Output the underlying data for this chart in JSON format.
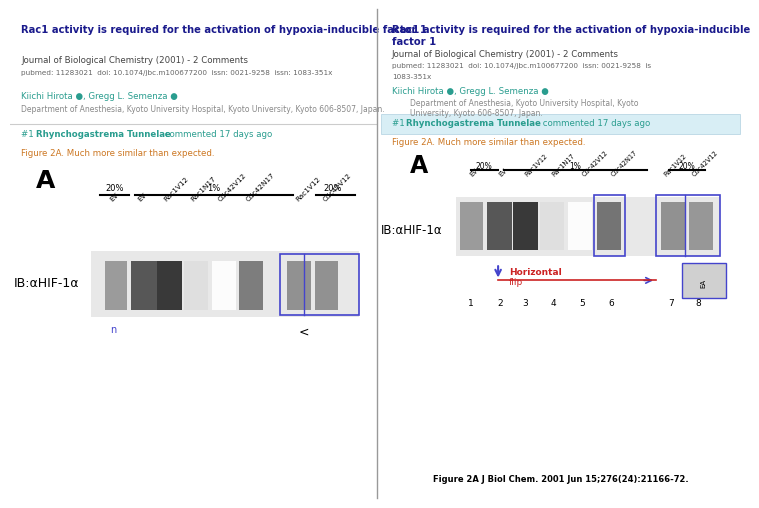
{
  "left_panel": {
    "bg_color": "#f0f4f8",
    "title": "Rac1 activity is required for the activation of hypoxia-inducible factor 1",
    "journal": "Journal of Biological Chemistry (2001) - 2 Comments",
    "pubmed": "pubmed: 11283021  doi: 10.1074/jbc.m100677200  issn: 0021-9258  issn: 1083-351x",
    "authors": "Kiichi Hirota ●, Gregg L. Semenza ●",
    "affiliation": "Department of Anesthesia, Kyoto University Hospital, Kyoto University, Kyoto 606-8507, Japan.",
    "comment": "#1 Rhynchogastrema Tunnelae commented 17 days ago",
    "figure_caption": "Figure 2A. Much more similar than expected.",
    "panel_label": "A",
    "percent_labels": [
      "20%",
      "1%",
      "20%"
    ],
    "lane_labels": [
      "EV",
      "EV",
      "Rac1V12",
      "Rac1N17",
      "Cdc42V12",
      "Cdc42N17",
      "Rac1V12",
      "Cdc42V12"
    ],
    "ib_label": "IB:αHIF-1α"
  },
  "right_panel": {
    "bg_color": "#e8f4f8",
    "title": "Rac1 activity is required for the activation of hypoxia-inducible\nfactor 1",
    "journal": "Journal of Biological Chemistry (2001) - 2 Comments",
    "pubmed": "pubmed: 11283021  doi: 10.1074/jbc.m100677200  issn: 0021-9258  is\n1083-351x",
    "authors": "Kiichi Hirota ●, Gregg L. Semenza ●",
    "affiliation": "Department of Anesthesia, Kyoto University Hospital, Kyoto\nUniversity, Kyoto 606-8507, Japan.",
    "comment": "#1 Rhynchogastrema Tunnelae commented 17 days ago",
    "figure_caption": "Figure 2A. Much more similar than expected.",
    "panel_label": "A",
    "percent_labels": [
      "20%",
      "1%",
      "20%"
    ],
    "lane_labels": [
      "EV",
      "EV",
      "Rac1V12",
      "Rac1N17",
      "Cdc42V12",
      "Cdc42N17",
      "Rac1V12",
      "Cdc42V12"
    ],
    "ib_label": "IB:αHIF-1α",
    "number_labels": [
      "1",
      "2",
      "3",
      "4",
      "5",
      "6",
      "7",
      "8"
    ],
    "figure_bottom": "Figure 2A J Biol Chem. 2001 Jun 15;276(24):21166-72.",
    "horizontal_label": "Horizontal",
    "flip_label": "flip",
    "arrow_color": "#4444cc",
    "horizontal_color": "#cc2222"
  },
  "divider_color": "#cccccc",
  "title_color": "#1a1a8c",
  "journal_color": "#444444",
  "pubmed_color": "#666666",
  "author_color": "#000000",
  "affil_color": "#888888",
  "comment_color": "#2a9d8f",
  "comment_bold_color": "#2a9d8f",
  "figure_caption_color": "#cc7722",
  "ib_color": "#000000"
}
